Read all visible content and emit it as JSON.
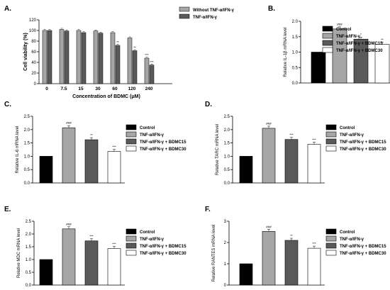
{
  "panels": {
    "A": {
      "letter": "A."
    },
    "B": {
      "letter": "B."
    },
    "C": {
      "letter": "C."
    },
    "D": {
      "letter": "D."
    },
    "E": {
      "letter": "E."
    },
    "F": {
      "letter": "F."
    }
  },
  "chart_data": [
    {
      "id": "A",
      "type": "bar",
      "xlabel": "Concentration of BDMC (μM)",
      "ylabel": "Cell viability (%)",
      "ylim": [
        0,
        120
      ],
      "yticks": [
        "0",
        "20",
        "40",
        "60",
        "80",
        "100",
        "120"
      ],
      "categories": [
        "0",
        "7.5",
        "15",
        "30",
        "60",
        "120",
        "240"
      ],
      "series": [
        {
          "name": "Without TNF-α/IFN-γ",
          "color": "#a6a6a6",
          "values": [
            100,
            102,
            100,
            99,
            96,
            86,
            48
          ]
        },
        {
          "name": "TNF-α/IFN-γ",
          "color": "#5a5a5a",
          "values": [
            100,
            99,
            96,
            95,
            72,
            62,
            35
          ]
        }
      ],
      "annotations": [
        "**",
        "**",
        "***",
        "***"
      ],
      "legend": "top-right"
    },
    {
      "id": "B",
      "type": "bar",
      "ylabel": "Relative IL-1β mRNA level",
      "ylim": [
        0,
        2.0
      ],
      "yticks": [
        "0.0",
        "0.5",
        "1.0",
        "1.5",
        "2.0"
      ],
      "categories": [
        "Control",
        "TNF-α/IFN-γ",
        "TNF-α/IFN-γ + BDMC15",
        "TNF-α/IFN-γ + BDMC30"
      ],
      "values": [
        1.0,
        1.75,
        1.42,
        1.25
      ],
      "significance": [
        "",
        "###",
        "*",
        "**"
      ],
      "colors": [
        "#000000",
        "#a6a6a6",
        "#5a5a5a",
        "#ffffff"
      ],
      "legend": "right"
    },
    {
      "id": "C",
      "type": "bar",
      "ylabel": "Relative IL-6 mRNA level",
      "ylim": [
        0,
        2.5
      ],
      "yticks": [
        "0.0",
        "0.5",
        "1.0",
        "1.5",
        "2.0",
        "2.5"
      ],
      "categories": [
        "Control",
        "TNF-α/IFN-γ",
        "TNF-α/IFN-γ + BDMC15",
        "TNF-α/IFN-γ + BDMC30"
      ],
      "values": [
        1.0,
        2.07,
        1.62,
        1.18
      ],
      "significance": [
        "",
        "###",
        "**",
        "***"
      ],
      "colors": [
        "#000000",
        "#a6a6a6",
        "#5a5a5a",
        "#ffffff"
      ],
      "legend": "right"
    },
    {
      "id": "D",
      "type": "bar",
      "ylabel": "Relative TARC mRNA level",
      "ylim": [
        0,
        2.5
      ],
      "yticks": [
        "0.0",
        "0.5",
        "1.0",
        "1.5",
        "2.0",
        "2.5"
      ],
      "categories": [
        "Control",
        "TNF-α/IFN-γ",
        "TNF-α/IFN-γ + BDMC15",
        "TNF-α/IFN-γ + BDMC30"
      ],
      "values": [
        1.0,
        2.05,
        1.63,
        1.45
      ],
      "significance": [
        "",
        "###",
        "***",
        "***"
      ],
      "colors": [
        "#000000",
        "#a6a6a6",
        "#5a5a5a",
        "#ffffff"
      ],
      "legend": "right"
    },
    {
      "id": "E",
      "type": "bar",
      "ylabel": "Relative MDC mRNA level",
      "ylim": [
        0,
        2.5
      ],
      "yticks": [
        "0.0",
        "0.5",
        "1.0",
        "1.5",
        "2.0",
        "2.5"
      ],
      "categories": [
        "Control",
        "TNF-α/IFN-γ",
        "TNF-α/IFN-γ + BDMC15",
        "TNF-α/IFN-γ + BDMC30"
      ],
      "values": [
        1.0,
        2.2,
        1.73,
        1.43
      ],
      "significance": [
        "",
        "###",
        "***",
        "***"
      ],
      "colors": [
        "#000000",
        "#a6a6a6",
        "#5a5a5a",
        "#ffffff"
      ],
      "legend": "right"
    },
    {
      "id": "F",
      "type": "bar",
      "ylabel": "Relative RANTES mRNA level",
      "ylim": [
        0,
        3
      ],
      "yticks": [
        "0",
        "1",
        "2",
        "3"
      ],
      "categories": [
        "Control",
        "TNF-α/IFN-γ",
        "TNF-α/IFN-γ + BDMC15",
        "TNF-α/IFN-γ + BDMC30"
      ],
      "values": [
        1.0,
        2.52,
        2.1,
        1.73
      ],
      "significance": [
        "",
        "###",
        "**",
        "***"
      ],
      "colors": [
        "#000000",
        "#a6a6a6",
        "#5a5a5a",
        "#ffffff"
      ],
      "legend": "right"
    }
  ]
}
